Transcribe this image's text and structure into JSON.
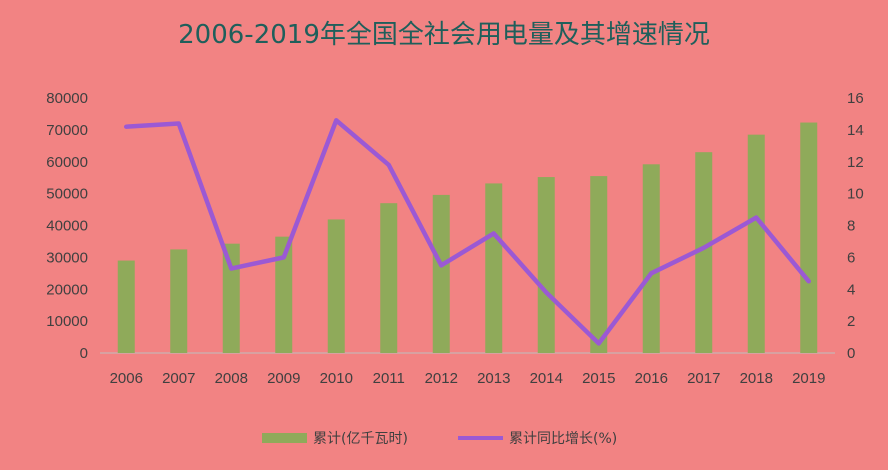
{
  "title": "2006-2019年全国全社会用电量及其增速情况",
  "chart_data": {
    "type": "bar",
    "categories": [
      "2006",
      "2007",
      "2008",
      "2009",
      "2010",
      "2011",
      "2012",
      "2013",
      "2014",
      "2015",
      "2016",
      "2017",
      "2018",
      "2019"
    ],
    "series": [
      {
        "name": "累计(亿千瓦时)",
        "type": "bar",
        "axis": "left",
        "color": "#8faa5a",
        "values": [
          29000,
          32500,
          34300,
          36500,
          41900,
          47000,
          49600,
          53200,
          55200,
          55500,
          59200,
          63000,
          68500,
          72300
        ]
      },
      {
        "name": "累计同比增长(%)",
        "type": "line",
        "axis": "right",
        "color": "#9b59d4",
        "values": [
          14.2,
          14.4,
          5.3,
          6.0,
          14.6,
          11.8,
          5.5,
          7.5,
          3.8,
          0.6,
          5.0,
          6.6,
          8.5,
          4.5
        ]
      }
    ],
    "y_left": {
      "ylim": [
        0,
        80000
      ],
      "ticks": [
        "0",
        "10000",
        "20000",
        "30000",
        "40000",
        "50000",
        "60000",
        "70000",
        "80000"
      ]
    },
    "y_right": {
      "ylim": [
        0,
        16
      ],
      "ticks": [
        "0",
        "2",
        "4",
        "6",
        "8",
        "10",
        "12",
        "14",
        "16"
      ]
    },
    "grid": false,
    "legend_position": "bottom"
  }
}
